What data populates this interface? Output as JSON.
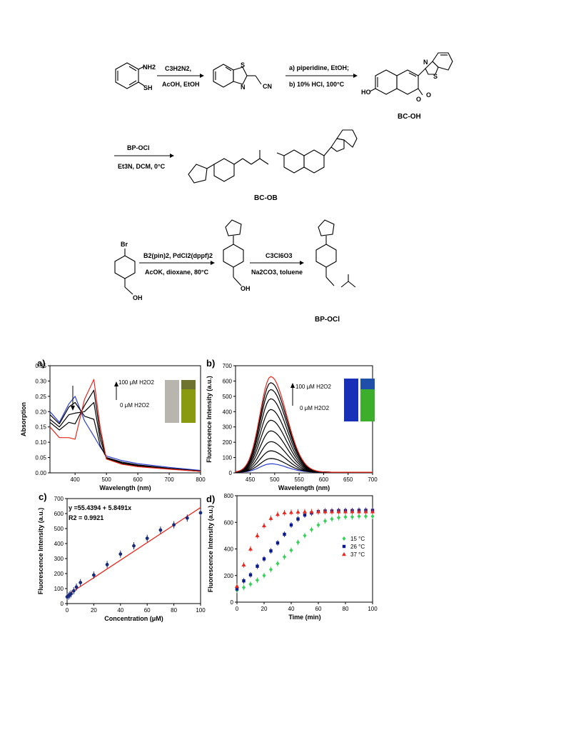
{
  "scheme": {
    "row1": {
      "start_nh2": "NH2",
      "start_sh": "SH",
      "step1_reagent_line1": "C3H2N2,",
      "step1_reagent_line2": "AcOH, EtOH",
      "int_s": "S",
      "int_n": "N",
      "int_cn": "CN",
      "step2_reagent_line1": "a) piperidine, EtOH;",
      "step2_reagent_line2": "b) 10% HCl, 100°C",
      "bcoh_ho": "HO",
      "bcoh_o_ring": "O",
      "bcoh_o_carbonyl": "O",
      "bcoh_n": "N",
      "bcoh_s": "S",
      "bcoh_label": "BC-OH"
    },
    "row2": {
      "reagent_line1": "BP-OCl",
      "reagent_line2": "Et3N, DCM, 0°C",
      "bcob_label": "BC-OB"
    },
    "row3": {
      "start_br": "Br",
      "start_oh": "OH",
      "step1_line1": "B2(pin)2, PdCl2(dppf)2",
      "step1_line2": "AcOK, dioxane, 80°C",
      "mid_oh": "OH",
      "step2_line1": "C3Cl6O3",
      "step2_line2": "Na2CO3, toluene",
      "bpocl_label": "BP-OCl"
    }
  },
  "panels": {
    "a": {
      "label": "a)",
      "legend_top": "100 μM H2O2",
      "legend_bottom": "0 μM H2O2"
    },
    "b": {
      "label": "b)",
      "legend_top": "100 μM H2O2",
      "legend_bottom": "0 μM H2O2"
    },
    "c": {
      "label": "c)",
      "equation": "y =55.4394 + 5.8491x",
      "r2": "R2 = 0.9921"
    },
    "d": {
      "label": "d)"
    }
  },
  "chart_data": [
    {
      "id": "a",
      "type": "line",
      "xlabel": "Wavelength (nm)",
      "ylabel": "Absorption",
      "xlim": [
        320,
        800
      ],
      "ylim": [
        0,
        0.35
      ],
      "xticks": [
        400,
        500,
        600,
        700,
        800
      ],
      "yticks": [
        0.0,
        0.05,
        0.1,
        0.15,
        0.2,
        0.25,
        0.3,
        0.35
      ],
      "series": [
        {
          "color": "#2e3fd0",
          "points": [
            [
              320,
              0.2
            ],
            [
              350,
              0.165
            ],
            [
              380,
              0.225
            ],
            [
              400,
              0.25
            ],
            [
              430,
              0.17
            ],
            [
              460,
              0.12
            ],
            [
              480,
              0.085
            ],
            [
              500,
              0.055
            ],
            [
              550,
              0.04
            ],
            [
              600,
              0.03
            ],
            [
              700,
              0.018
            ],
            [
              800,
              0.008
            ]
          ]
        },
        {
          "color": "#000000",
          "points": [
            [
              320,
              0.19
            ],
            [
              350,
              0.16
            ],
            [
              380,
              0.215
            ],
            [
              400,
              0.23
            ],
            [
              430,
              0.185
            ],
            [
              460,
              0.175
            ],
            [
              480,
              0.09
            ],
            [
              500,
              0.05
            ],
            [
              550,
              0.035
            ],
            [
              600,
              0.026
            ],
            [
              700,
              0.015
            ],
            [
              800,
              0.006
            ]
          ]
        },
        {
          "color": "#000000",
          "points": [
            [
              320,
              0.175
            ],
            [
              350,
              0.15
            ],
            [
              380,
              0.19
            ],
            [
              400,
              0.195
            ],
            [
              430,
              0.2
            ],
            [
              460,
              0.23
            ],
            [
              480,
              0.11
            ],
            [
              500,
              0.048
            ],
            [
              550,
              0.032
            ],
            [
              600,
              0.024
            ],
            [
              700,
              0.014
            ],
            [
              800,
              0.005
            ]
          ]
        },
        {
          "color": "#000000",
          "points": [
            [
              320,
              0.165
            ],
            [
              350,
              0.14
            ],
            [
              380,
              0.165
            ],
            [
              400,
              0.16
            ],
            [
              430,
              0.22
            ],
            [
              460,
              0.27
            ],
            [
              480,
              0.13
            ],
            [
              500,
              0.046
            ],
            [
              550,
              0.03
            ],
            [
              600,
              0.022
            ],
            [
              700,
              0.013
            ],
            [
              800,
              0.005
            ]
          ]
        },
        {
          "color": "#e8281e",
          "points": [
            [
              320,
              0.15
            ],
            [
              350,
              0.115
            ],
            [
              380,
              0.115
            ],
            [
              400,
              0.11
            ],
            [
              430,
              0.24
            ],
            [
              460,
              0.305
            ],
            [
              480,
              0.15
            ],
            [
              500,
              0.045
            ],
            [
              550,
              0.028
            ],
            [
              600,
              0.02
            ],
            [
              700,
              0.012
            ],
            [
              800,
              0.005
            ]
          ]
        }
      ]
    },
    {
      "id": "b",
      "type": "line",
      "xlabel": "Wavelength (nm)",
      "ylabel": "Fluorescence Intensity (a.u.)",
      "xlim": [
        420,
        700
      ],
      "ylim": [
        0,
        700
      ],
      "xticks": [
        450,
        500,
        550,
        600,
        650,
        700
      ],
      "yticks": [
        0,
        100,
        200,
        300,
        400,
        500,
        600,
        700
      ],
      "series": [
        {
          "color": "#2e3fd0",
          "peak": 55
        },
        {
          "color": "#000000",
          "peak": 90
        },
        {
          "color": "#000000",
          "peak": 140
        },
        {
          "color": "#000000",
          "peak": 200
        },
        {
          "color": "#000000",
          "peak": 270
        },
        {
          "color": "#000000",
          "peak": 340
        },
        {
          "color": "#000000",
          "peak": 410
        },
        {
          "color": "#000000",
          "peak": 480
        },
        {
          "color": "#000000",
          "peak": 540
        },
        {
          "color": "#000000",
          "peak": 585
        },
        {
          "color": "#e8281e",
          "peak": 625
        }
      ],
      "peak_wavelength": 492
    },
    {
      "id": "c",
      "type": "scatter",
      "xlabel": "Concentration (μM)",
      "ylabel": "Fluorescence Intensity (a.u.)",
      "xlim": [
        0,
        100
      ],
      "ylim": [
        0,
        700
      ],
      "xticks": [
        0,
        20,
        40,
        60,
        80,
        100
      ],
      "yticks": [
        0,
        100,
        200,
        300,
        400,
        500,
        600,
        700
      ],
      "x": [
        0,
        1,
        2,
        3,
        5,
        7,
        10,
        20,
        30,
        40,
        50,
        60,
        70,
        80,
        90,
        100
      ],
      "y": [
        45,
        50,
        58,
        65,
        85,
        110,
        140,
        190,
        260,
        330,
        385,
        435,
        490,
        525,
        570,
        605
      ],
      "fit": {
        "intercept": 55.4394,
        "slope": 5.8491
      }
    },
    {
      "id": "d",
      "type": "scatter",
      "xlabel": "Time (min)",
      "ylabel": "Fluorescence Intensity (a.u.)",
      "xlim": [
        0,
        100
      ],
      "ylim": [
        0,
        800
      ],
      "xticks": [
        0,
        20,
        40,
        60,
        80,
        100
      ],
      "yticks": [
        0,
        200,
        400,
        600,
        800
      ],
      "x": [
        0,
        5,
        10,
        15,
        20,
        25,
        30,
        35,
        40,
        45,
        50,
        55,
        60,
        65,
        70,
        75,
        80,
        85,
        90,
        95,
        100
      ],
      "series": [
        {
          "name": "15 °C",
          "color": "#3ad15a",
          "marker": "diamond",
          "y": [
            90,
            110,
            135,
            165,
            200,
            245,
            290,
            340,
            390,
            450,
            500,
            545,
            580,
            610,
            625,
            635,
            640,
            640,
            645,
            645,
            645
          ]
        },
        {
          "name": "26 °C",
          "color": "#0a1a8c",
          "marker": "square",
          "y": [
            100,
            160,
            205,
            270,
            325,
            385,
            445,
            510,
            580,
            625,
            655,
            670,
            680,
            685,
            685,
            688,
            688,
            688,
            690,
            690,
            690
          ]
        },
        {
          "name": "37 °C",
          "color": "#e8281e",
          "marker": "triangle",
          "y": [
            120,
            280,
            400,
            500,
            575,
            630,
            660,
            672,
            675,
            678,
            680,
            680,
            680,
            680,
            680,
            680,
            680,
            680,
            680,
            680,
            680
          ]
        }
      ]
    }
  ]
}
